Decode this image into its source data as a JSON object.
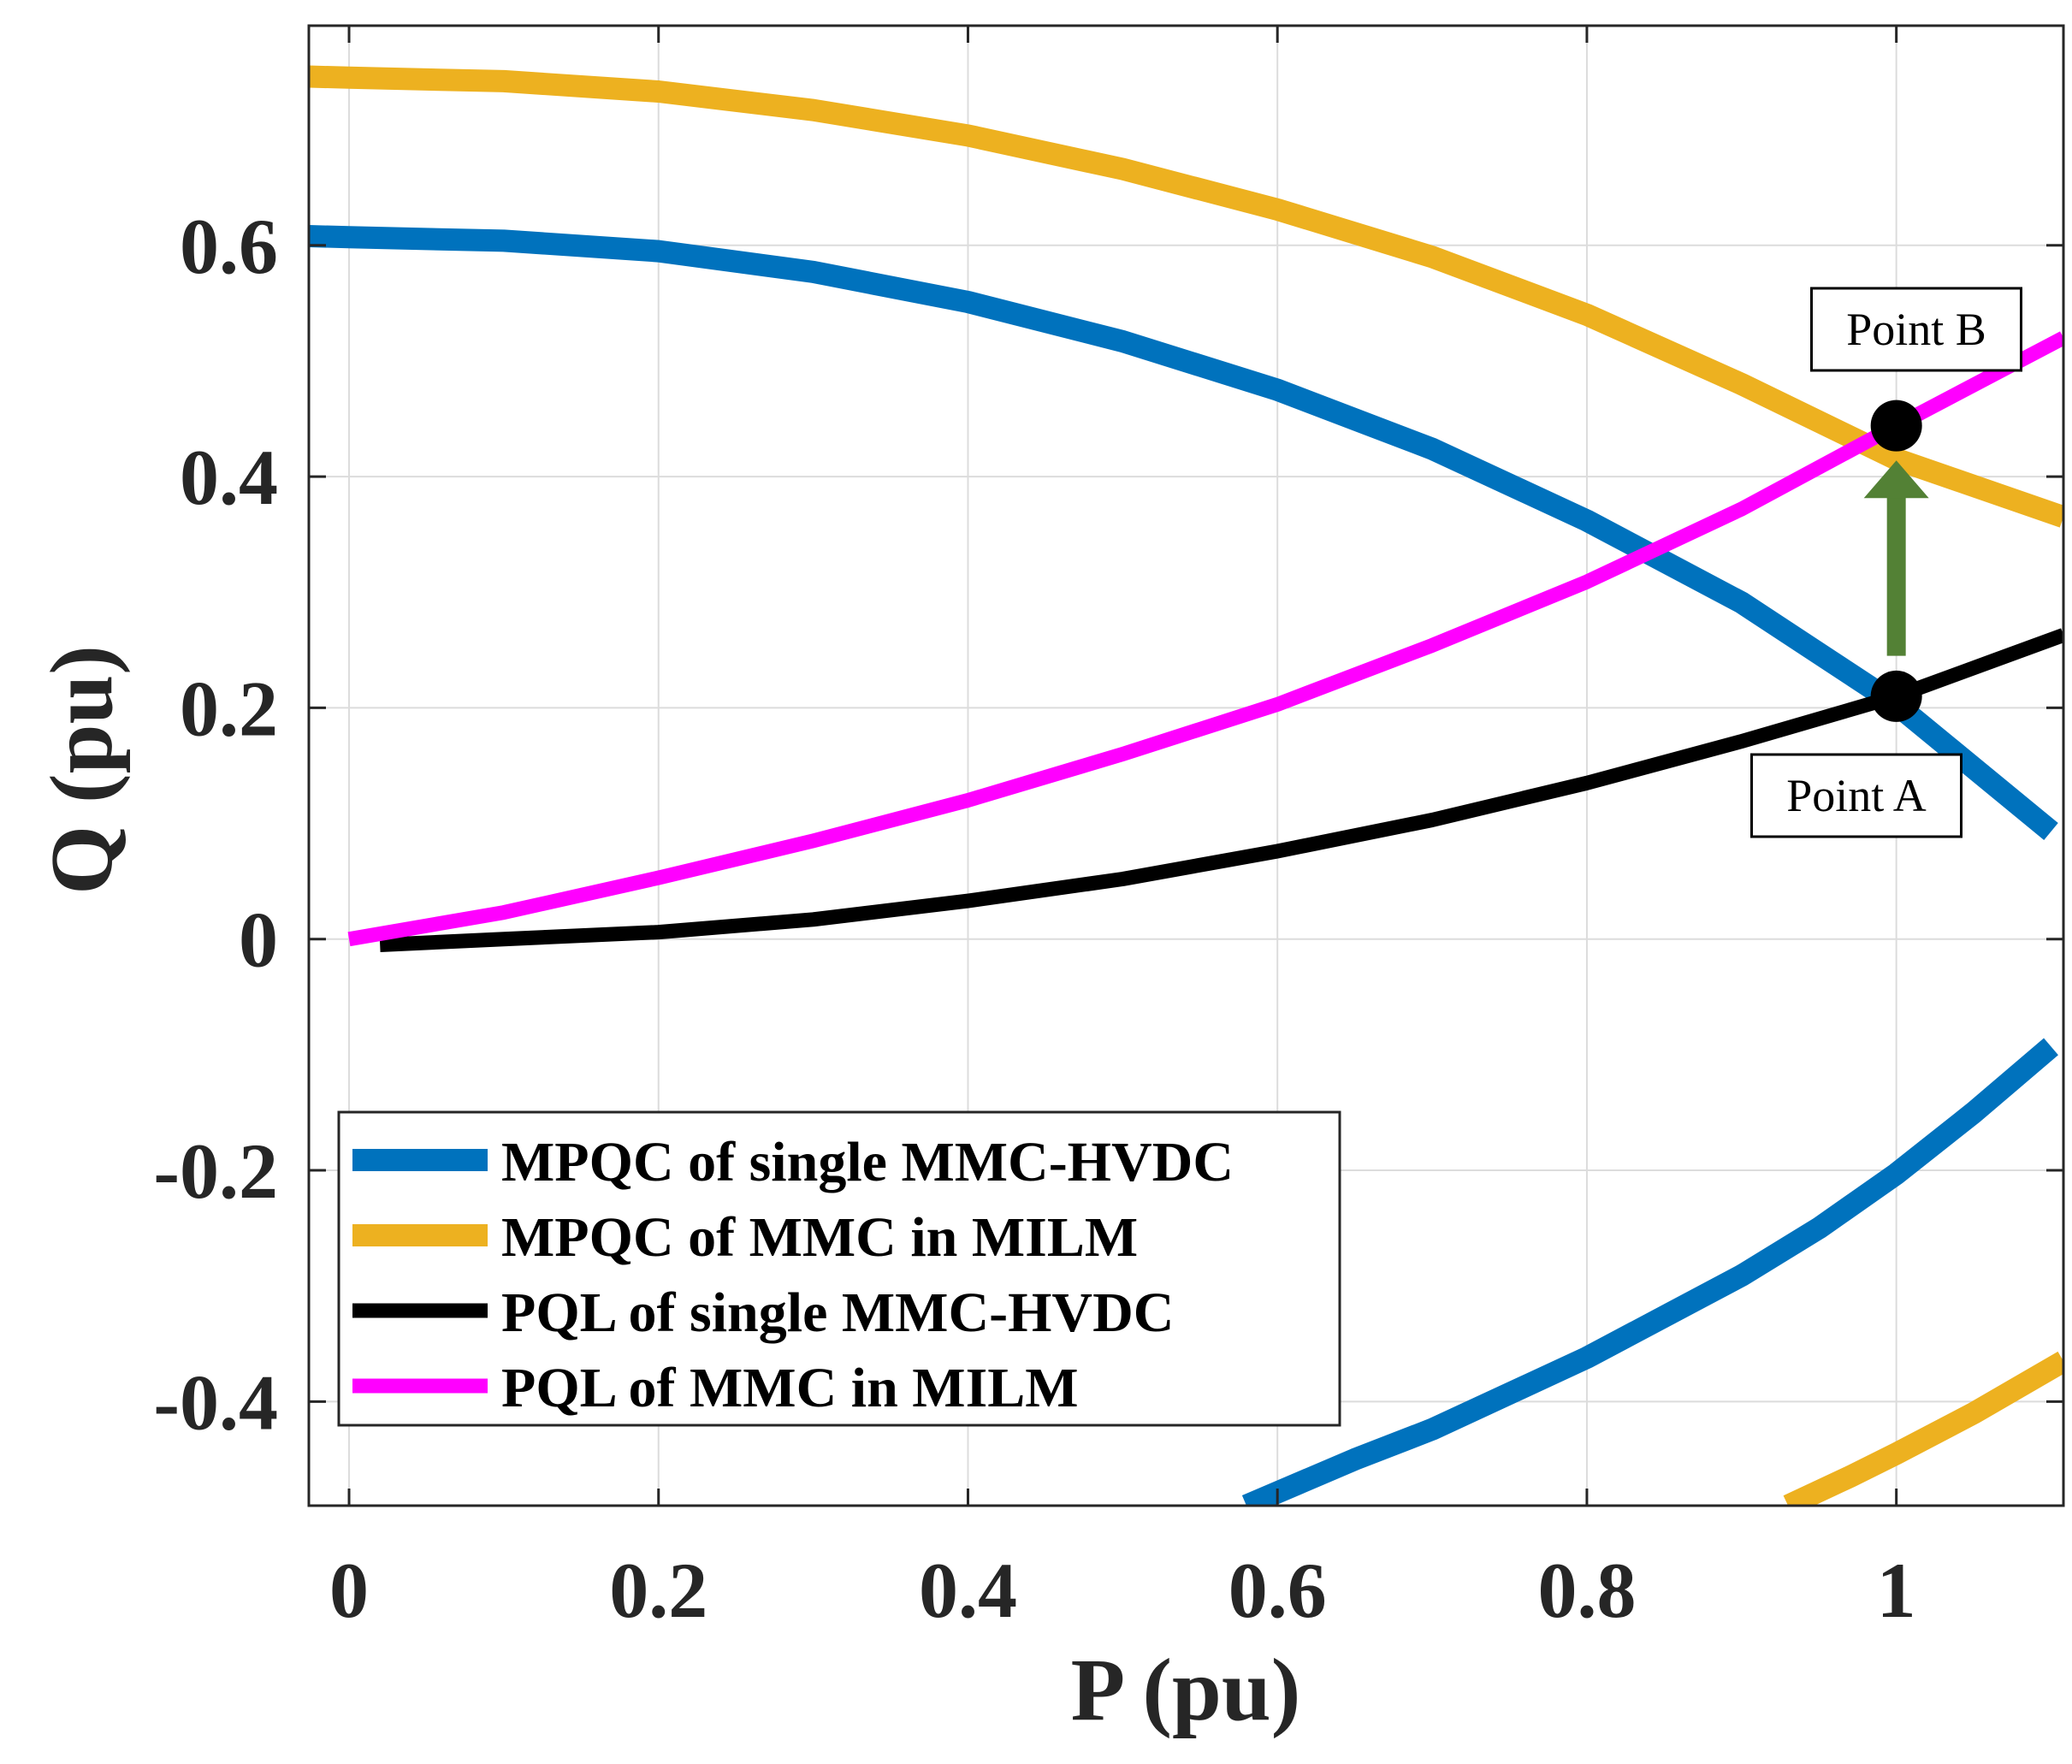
{
  "chart_data": {
    "type": "line",
    "xlabel": "P (pu)",
    "ylabel": "Q (pu)",
    "xlim": [
      -0.026,
      1.108
    ],
    "ylim": [
      -0.49,
      0.79
    ],
    "xticks": [
      0,
      0.2,
      0.4,
      0.6,
      0.8,
      1
    ],
    "xtick_labels": [
      "0",
      "0.2",
      "0.4",
      "0.6",
      "0.8",
      "1"
    ],
    "yticks": [
      -0.4,
      -0.2,
      0,
      0.2,
      0.4,
      0.6
    ],
    "ytick_labels": [
      "-0.4",
      "-0.2",
      "0",
      "0.2",
      "0.4",
      "0.6"
    ],
    "grid": true,
    "legend_position": "bottom-left",
    "series": [
      {
        "name": "MPQC of single MMC-HVDC",
        "color": "#0072BD",
        "width": "thick",
        "segments": [
          {
            "x": [
              -0.026,
              0,
              0.1,
              0.2,
              0.3,
              0.4,
              0.5,
              0.6,
              0.7,
              0.8,
              0.9,
              1.0,
              1.1
            ],
            "y": [
              0.608,
              0.607,
              0.604,
              0.595,
              0.577,
              0.551,
              0.517,
              0.475,
              0.424,
              0.362,
              0.291,
              0.203,
              0.093
            ]
          },
          {
            "x": [
              0.58,
              0.65,
              0.7,
              0.8,
              0.9,
              0.95,
              1.0,
              1.05,
              1.1
            ],
            "y": [
              -0.49,
              -0.45,
              -0.424,
              -0.362,
              -0.291,
              -0.25,
              -0.203,
              -0.15,
              -0.093
            ]
          }
        ]
      },
      {
        "name": "MPQC of MMC in MILM",
        "color": "#EDB120",
        "width": "thick",
        "segments": [
          {
            "x": [
              -0.026,
              0,
              0.1,
              0.2,
              0.3,
              0.4,
              0.5,
              0.6,
              0.7,
              0.8,
              0.9,
              1.0,
              1.108
            ],
            "y": [
              0.746,
              0.745,
              0.742,
              0.733,
              0.717,
              0.695,
              0.666,
              0.631,
              0.59,
              0.54,
              0.48,
              0.415,
              0.365
            ]
          },
          {
            "x": [
              0.93,
              0.97,
              1.0,
              1.05,
              1.108
            ],
            "y": [
              -0.49,
              -0.465,
              -0.445,
              -0.41,
              -0.365
            ]
          }
        ]
      },
      {
        "name": "PQL of single MMC-HVDC",
        "color": "#000000",
        "width": "medium",
        "segments": [
          {
            "x": [
              0.02,
              0.1,
              0.2,
              0.3,
              0.4,
              0.5,
              0.6,
              0.7,
              0.8,
              0.9,
              1.0,
              1.108
            ],
            "y": [
              -0.005,
              0.0,
              0.006,
              0.017,
              0.033,
              0.052,
              0.076,
              0.103,
              0.135,
              0.171,
              0.21,
              0.263
            ]
          }
        ]
      },
      {
        "name": "PQL of MMC in MILM",
        "color": "#FF00FF",
        "width": "medium",
        "segments": [
          {
            "x": [
              0.0,
              0.1,
              0.2,
              0.3,
              0.4,
              0.5,
              0.6,
              0.7,
              0.8,
              0.9,
              1.0,
              1.108
            ],
            "y": [
              0.0,
              0.023,
              0.053,
              0.085,
              0.12,
              0.16,
              0.203,
              0.254,
              0.309,
              0.372,
              0.444,
              0.52
            ]
          }
        ]
      }
    ],
    "points": [
      {
        "label": "Point A",
        "x": 1.0,
        "y": 0.21
      },
      {
        "label": "Point B",
        "x": 1.0,
        "y": 0.444
      }
    ],
    "arrow": {
      "from": [
        1.0,
        0.245
      ],
      "to": [
        1.0,
        0.414
      ],
      "color": "#538135"
    }
  }
}
